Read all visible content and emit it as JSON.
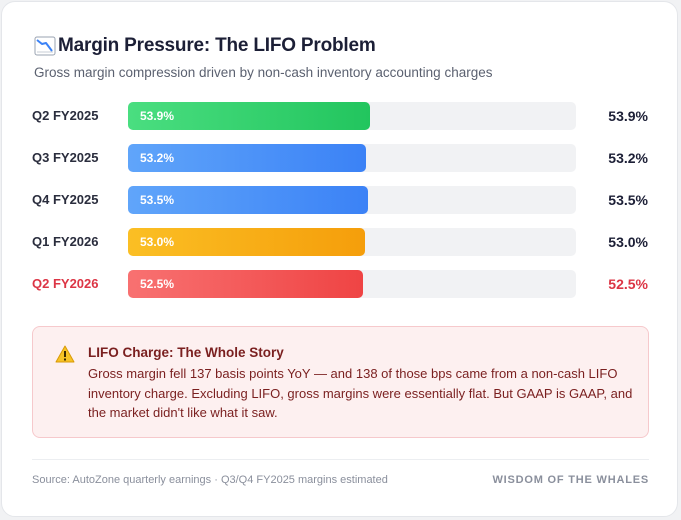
{
  "header": {
    "title": "Margin Pressure: The LIFO Problem",
    "subtitle": "Gross margin compression driven by non-cash inventory accounting charges"
  },
  "chart_data": {
    "type": "bar",
    "orientation": "horizontal",
    "title": "Margin Pressure: The LIFO Problem",
    "categories": [
      "Q2 FY2025",
      "Q3 FY2025",
      "Q4 FY2025",
      "Q1 FY2026",
      "Q2 FY2026"
    ],
    "values": [
      53.9,
      53.2,
      53.5,
      53.0,
      52.5
    ],
    "value_labels": [
      "53.9%",
      "53.2%",
      "53.5%",
      "53.0%",
      "52.5%"
    ],
    "unit": "%",
    "xlim": [
      0,
      100
    ],
    "bar_colors": [
      [
        "#4ade80",
        "#22c55e"
      ],
      [
        "#60a5fa",
        "#3b82f6"
      ],
      [
        "#60a5fa",
        "#3b82f6"
      ],
      [
        "#fbbf24",
        "#f59e0b"
      ],
      [
        "#f87171",
        "#ef4444"
      ]
    ],
    "highlighted_category": "Q2 FY2026"
  },
  "colors": {
    "highlight": "#dc3545",
    "track": "#f1f2f4"
  },
  "callout": {
    "icon": "warning-icon",
    "title": "LIFO Charge: The Whole Story",
    "body": "Gross margin fell 137 basis points YoY — and 138 of those bps came from a non-cash LIFO inventory charge. Excluding LIFO, gross margins were essentially flat. But GAAP is GAAP, and the market didn't like what it saw."
  },
  "footer": {
    "source": "Source: AutoZone quarterly earnings · Q3/Q4 FY2025 margins estimated",
    "brand": "WISDOM OF THE WHALES"
  }
}
